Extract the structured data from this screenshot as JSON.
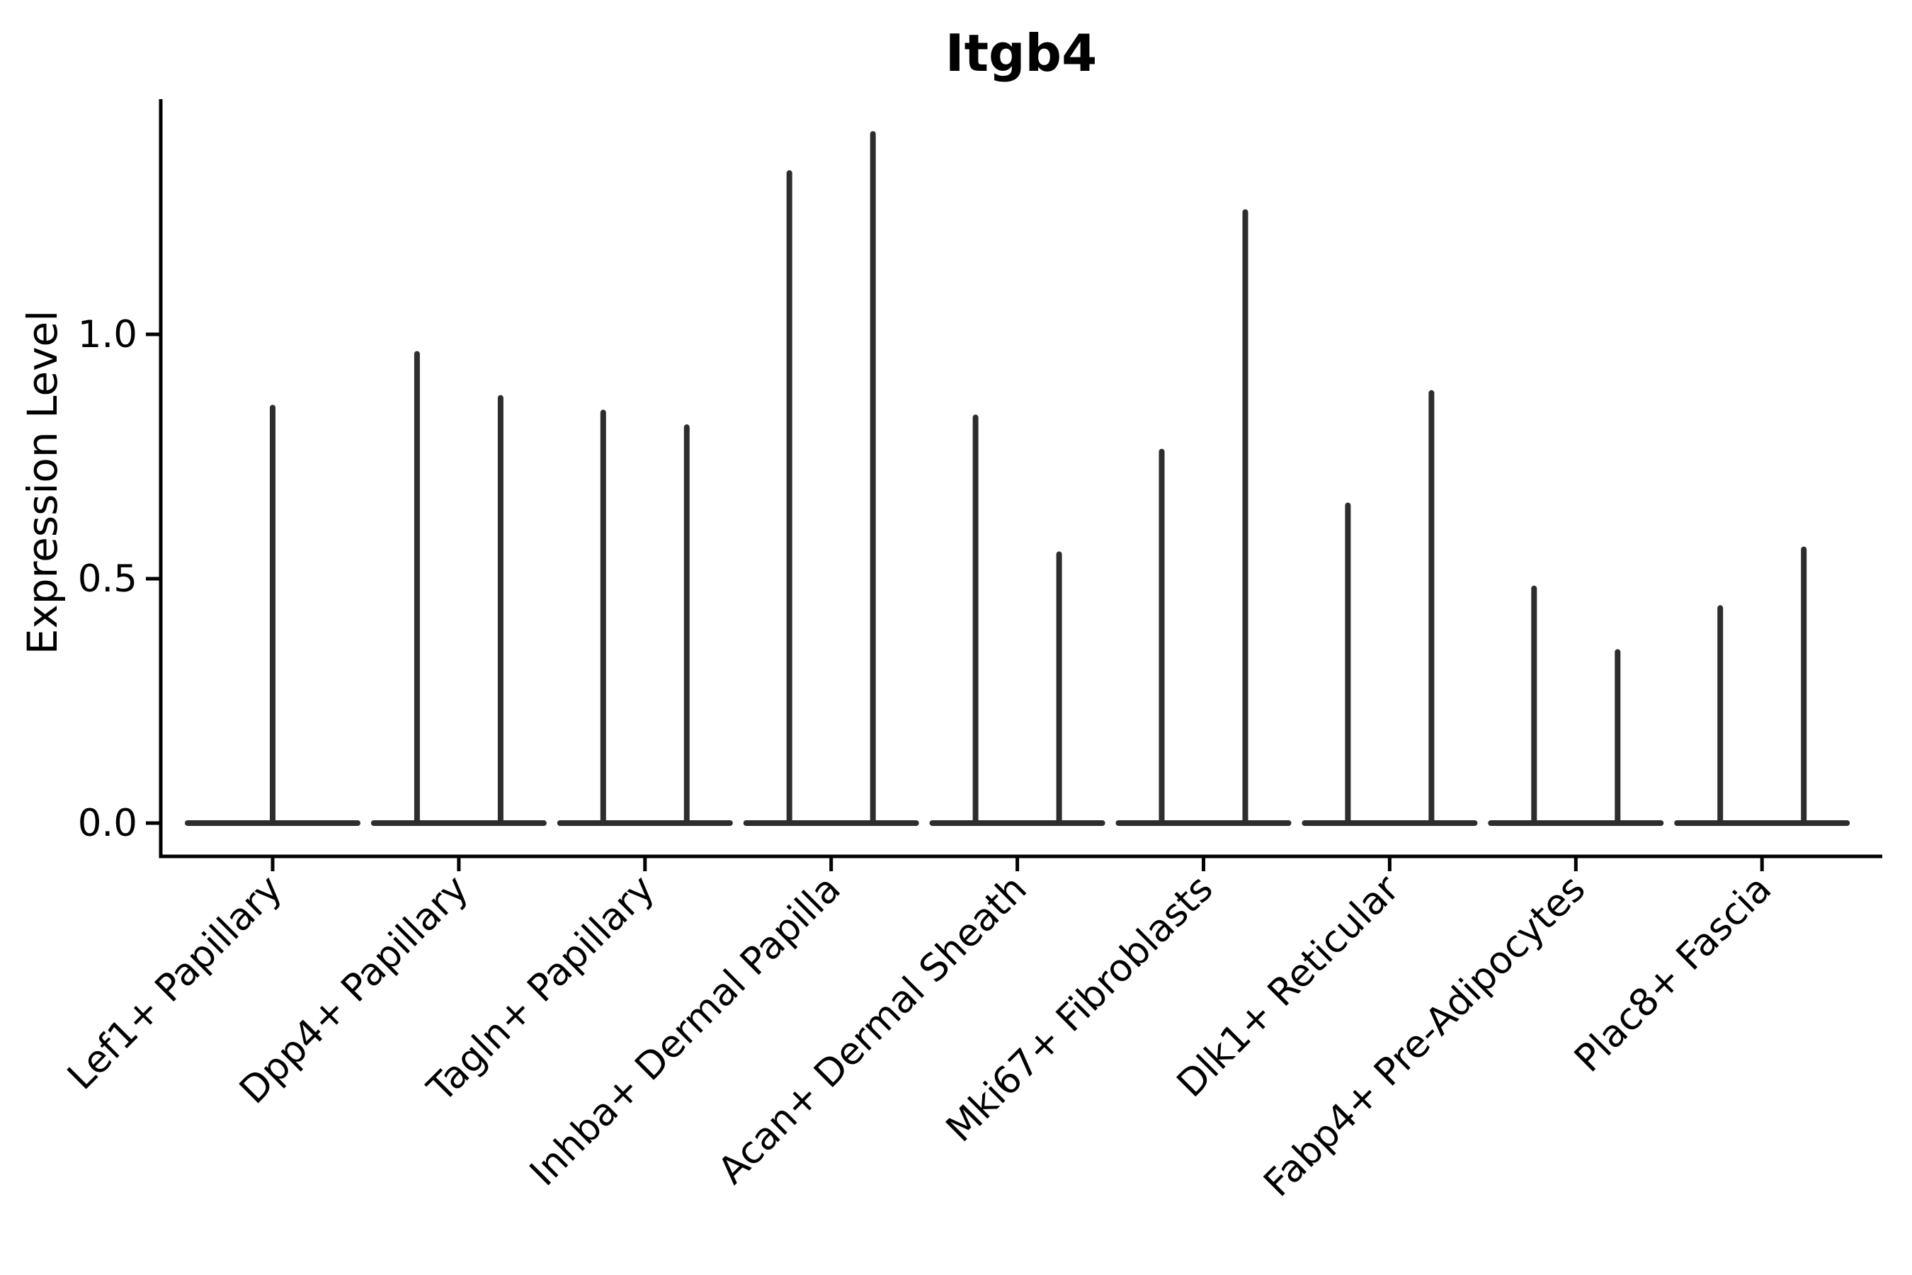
{
  "chart_data": {
    "type": "violin",
    "title": "Itgb4",
    "xlabel": "",
    "ylabel": "Expression Level",
    "legend": "none",
    "grid": false,
    "background_color": "#ffffff",
    "violin_line_color": "#2d2d2d",
    "axis_color": "#000000",
    "ylim": [
      -0.07,
      1.48
    ],
    "yticks": [
      {
        "label": "0.0",
        "value": 0.0
      },
      {
        "label": "0.5",
        "value": 0.5
      },
      {
        "label": "1.0",
        "value": 1.0
      }
    ],
    "categories": [
      "Lef1+ Papillary",
      "Dpp4+ Papillary",
      "Tagln+ Papillary",
      "Inhba+ Dermal Papilla",
      "Acan+ Dermal Sheath",
      "Mki67+ Fibroblasts",
      "Dlk1+ Reticular",
      "Fabp4+ Pre-Adipocytes",
      "Plac8+ Fascia"
    ],
    "series_note": "Each category shows violin(s) collapsed to a flat base at 0 with thin spikes up to the max expression; categories with two groups show two spikes (left, right), single-group categories show one centered spike.",
    "violins": [
      {
        "category": "Lef1+ Papillary",
        "baseline_value": 0,
        "spike_maxima": [
          0.85
        ]
      },
      {
        "category": "Dpp4+ Papillary",
        "baseline_value": 0,
        "spike_maxima": [
          0.96,
          0.87
        ]
      },
      {
        "category": "Tagln+ Papillary",
        "baseline_value": 0,
        "spike_maxima": [
          0.84,
          0.81
        ]
      },
      {
        "category": "Inhba+ Dermal Papilla",
        "baseline_value": 0,
        "spike_maxima": [
          1.33,
          1.41
        ]
      },
      {
        "category": "Acan+ Dermal Sheath",
        "baseline_value": 0,
        "spike_maxima": [
          0.83,
          0.55
        ]
      },
      {
        "category": "Mki67+ Fibroblasts",
        "baseline_value": 0,
        "spike_maxima": [
          0.76,
          1.25
        ]
      },
      {
        "category": "Dlk1+ Reticular",
        "baseline_value": 0,
        "spike_maxima": [
          0.65,
          0.88
        ]
      },
      {
        "category": "Fabp4+ Pre-Adipocytes",
        "baseline_value": 0,
        "spike_maxima": [
          0.48,
          0.35
        ]
      },
      {
        "category": "Plac8+ Fascia",
        "baseline_value": 0,
        "spike_maxima": [
          0.44,
          0.56
        ]
      }
    ]
  }
}
